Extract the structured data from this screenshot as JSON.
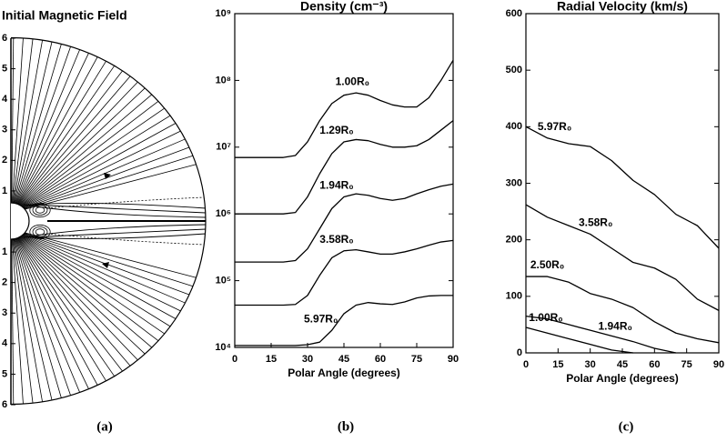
{
  "chart_data": [
    {
      "type": "field",
      "title": "Initial Magnetic Field",
      "caption": "(a)",
      "ylim": [
        -6,
        6
      ],
      "yticks": [
        {
          "value": 6,
          "label": "6"
        },
        {
          "value": 5,
          "label": "5"
        },
        {
          "value": 4,
          "label": "4"
        },
        {
          "value": 3,
          "label": "3"
        },
        {
          "value": 2,
          "label": "2"
        },
        {
          "value": 1,
          "label": "1"
        },
        {
          "value": -1,
          "label": "1"
        },
        {
          "value": -2,
          "label": "2"
        },
        {
          "value": -3,
          "label": "3"
        },
        {
          "value": -4,
          "label": "4"
        },
        {
          "value": -5,
          "label": "5"
        },
        {
          "value": -6,
          "label": "6"
        }
      ]
    },
    {
      "type": "line",
      "title": "Density (cm⁻³)",
      "caption": "(b)",
      "xlabel": "Polar Angle (degrees)",
      "log_y": true,
      "xlim": [
        0,
        90
      ],
      "xticks": [
        0,
        15,
        30,
        45,
        60,
        75,
        90
      ],
      "ylim": [
        10000,
        1000000000
      ],
      "yticks": [
        {
          "value": 10000,
          "label": "10⁴"
        },
        {
          "value": 100000,
          "label": "10⁵"
        },
        {
          "value": 1000000,
          "label": "10⁶"
        },
        {
          "value": 10000000,
          "label": "10⁷"
        },
        {
          "value": 100000000,
          "label": "10⁸"
        },
        {
          "value": 1000000000,
          "label": "10⁹"
        }
      ],
      "x": [
        0,
        10,
        20,
        25,
        30,
        35,
        40,
        45,
        50,
        55,
        60,
        65,
        70,
        75,
        80,
        85,
        90
      ],
      "series": [
        {
          "name": "1.00R₀",
          "color": "#000000",
          "values": [
            7000000,
            7000000,
            7000000,
            7500000,
            12000000,
            25000000,
            45000000,
            60000000,
            65000000,
            60000000,
            50000000,
            43000000,
            40000000,
            40000000,
            55000000,
            100000000,
            200000000
          ]
        },
        {
          "name": "1.29R₀",
          "color": "#000000",
          "values": [
            1000000,
            1000000,
            1000000,
            1050000,
            1800000,
            4000000,
            8000000,
            12000000,
            13000000,
            12500000,
            11000000,
            10000000,
            10000000,
            10500000,
            13000000,
            18000000,
            25000000
          ]
        },
        {
          "name": "1.94R₀",
          "color": "#000000",
          "values": [
            190000,
            190000,
            190000,
            200000,
            300000,
            600000,
            1200000,
            1800000,
            2000000,
            1900000,
            1700000,
            1600000,
            1700000,
            2000000,
            2300000,
            2600000,
            2800000
          ]
        },
        {
          "name": "3.58R₀",
          "color": "#000000",
          "values": [
            43000,
            43000,
            43000,
            44000,
            60000,
            120000,
            220000,
            280000,
            290000,
            270000,
            250000,
            250000,
            270000,
            300000,
            340000,
            380000,
            400000
          ]
        },
        {
          "name": "5.97R₀",
          "color": "#000000",
          "values": [
            10700,
            10700,
            10700,
            10700,
            11000,
            12000,
            18000,
            32000,
            43000,
            47000,
            45000,
            44000,
            48000,
            55000,
            59000,
            60000,
            60000
          ]
        }
      ]
    },
    {
      "type": "line",
      "title": "Radial Velocity (km/s)",
      "caption": "(c)",
      "xlabel": "Polar Angle (degrees)",
      "log_y": false,
      "xlim": [
        0,
        90
      ],
      "xticks": [
        0,
        15,
        30,
        45,
        60,
        75,
        90
      ],
      "ylim": [
        0,
        600
      ],
      "yticks": [
        0,
        100,
        200,
        300,
        400,
        500,
        600
      ],
      "x": [
        0,
        10,
        20,
        30,
        40,
        50,
        60,
        70,
        80,
        90
      ],
      "series": [
        {
          "name": "5.97R₀",
          "color": "#000000",
          "values": [
            400,
            380,
            370,
            365,
            340,
            305,
            280,
            245,
            225,
            185
          ]
        },
        {
          "name": "3.58R₀",
          "color": "#000000",
          "values": [
            262,
            240,
            225,
            210,
            185,
            160,
            150,
            130,
            95,
            75
          ]
        },
        {
          "name": "2.50R₀",
          "color": "#000000",
          "values": [
            135,
            135,
            125,
            105,
            95,
            80,
            55,
            35,
            25,
            18
          ]
        },
        {
          "name": "1.94R₀",
          "color": "#000000",
          "values": [
            65,
            60,
            50,
            40,
            30,
            20,
            8,
            0,
            null,
            null
          ]
        },
        {
          "name": "1.00R₀",
          "color": "#000000",
          "values": [
            45,
            35,
            25,
            15,
            5,
            0,
            null,
            null,
            null,
            null
          ]
        }
      ]
    }
  ]
}
